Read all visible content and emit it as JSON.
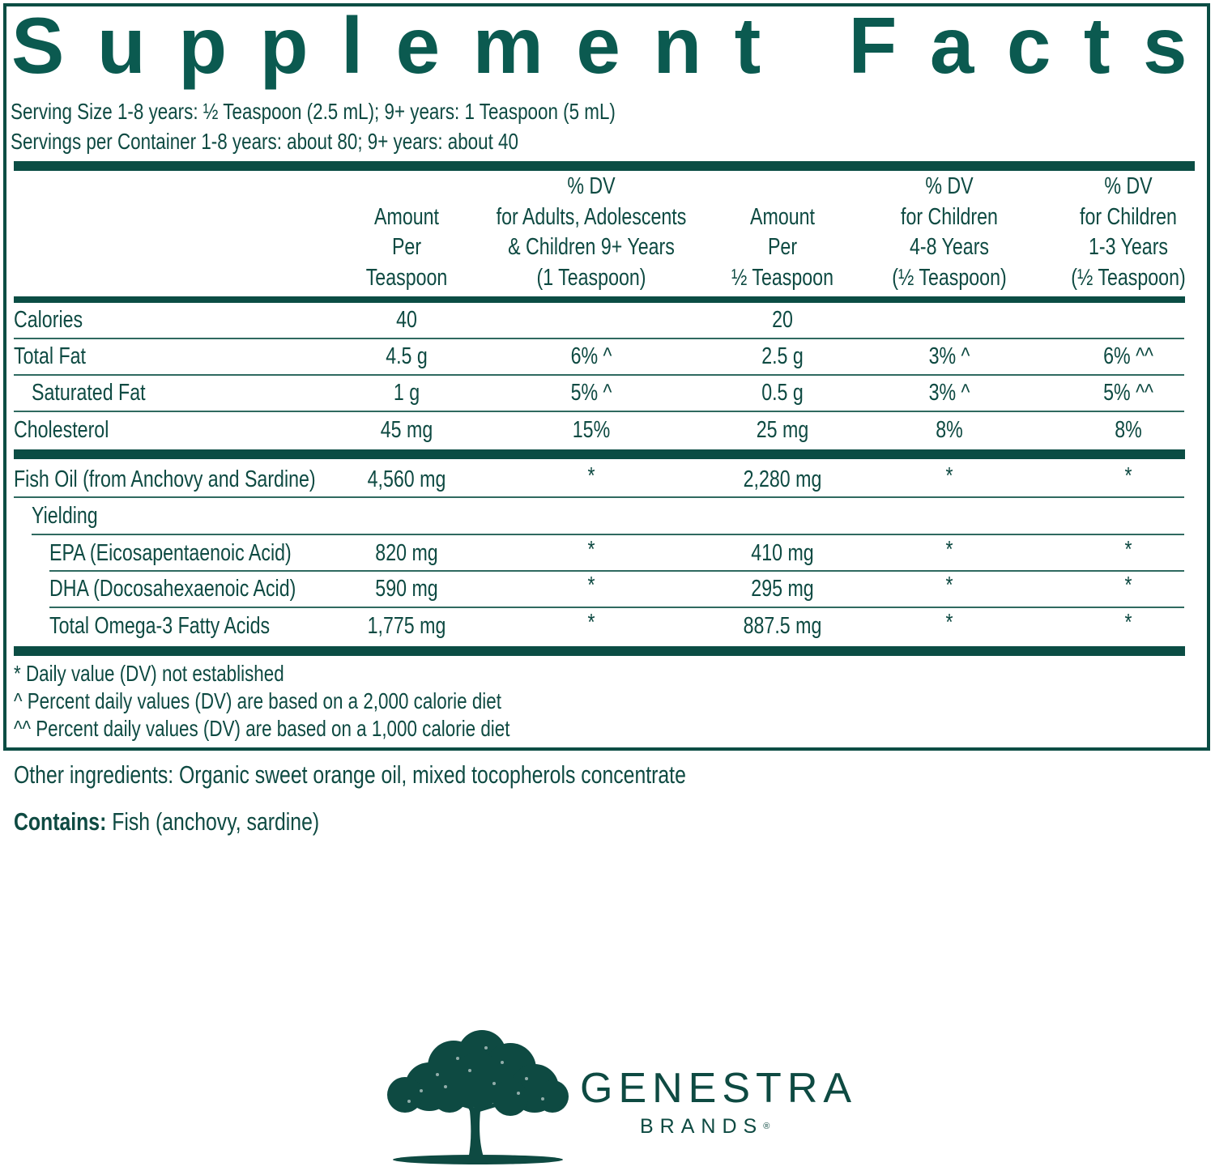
{
  "label": {
    "title": "Supplement Facts",
    "serving_size": "Serving Size 1-8 years: ½ Teaspoon (2.5 mL); 9+ years: 1 Teaspoon (5 mL)",
    "servings_per_container": "Servings per Container 1-8 years: about 80; 9+ years: about 40",
    "colors": {
      "primary": "#0b4d44",
      "text": "#0e4a42"
    },
    "columns": [
      {
        "lines": [
          "Amount",
          "Per",
          "Teaspoon"
        ]
      },
      {
        "lines": [
          "% DV",
          "for Adults, Adolescents",
          "& Children 9+ Years",
          "(1 Teaspoon)"
        ]
      },
      {
        "lines": [
          "Amount",
          "Per",
          "½ Teaspoon"
        ]
      },
      {
        "lines": [
          "% DV",
          "for Children",
          "4-8 Years",
          "(½ Teaspoon)"
        ]
      },
      {
        "lines": [
          "% DV",
          "for Children",
          "1-3 Years",
          "(½ Teaspoon)"
        ]
      }
    ],
    "rows": [
      {
        "name": "Calories",
        "indent": 0,
        "values": [
          "40",
          "",
          "20",
          "",
          ""
        ]
      },
      {
        "name": "Total Fat",
        "indent": 0,
        "values": [
          "4.5 g",
          "6% ^",
          "2.5 g",
          "3% ^",
          "6% ^^"
        ]
      },
      {
        "name": "Saturated Fat",
        "indent": 1,
        "values": [
          "1 g",
          "5% ^",
          "0.5 g",
          "3% ^",
          "5% ^^"
        ]
      },
      {
        "name": "Cholesterol",
        "indent": 0,
        "values": [
          "45 mg",
          "15%",
          "25 mg",
          "8%",
          "8%"
        ]
      },
      {
        "name": "Fish Oil (from Anchovy and Sardine)",
        "indent": 0,
        "values": [
          "4,560 mg",
          "*",
          "2,280 mg",
          "*",
          "*"
        ]
      },
      {
        "name": "Yielding",
        "indent": 1,
        "values": [
          "",
          "",
          "",
          "",
          ""
        ]
      },
      {
        "name": "EPA (Eicosapentaenoic Acid)",
        "indent": 2,
        "values": [
          "820 mg",
          "*",
          "410 mg",
          "*",
          "*"
        ]
      },
      {
        "name": "DHA (Docosahexaenoic Acid)",
        "indent": 2,
        "values": [
          "590 mg",
          "*",
          "295 mg",
          "*",
          "*"
        ]
      },
      {
        "name": "Total Omega-3 Fatty Acids",
        "indent": 2,
        "values": [
          "1,775 mg",
          "*",
          "887.5 mg",
          "*",
          "*"
        ]
      }
    ],
    "footnotes": [
      "* Daily value (DV) not established",
      "^ Percent daily values (DV) are based on a 2,000 calorie diet",
      "^^ Percent daily values (DV) are based on a 1,000 calorie diet"
    ]
  },
  "other_ingredients": "Other ingredients: Organic sweet orange oil, mixed tocopherols concentrate",
  "contains": {
    "label": "Contains:",
    "text": " Fish (anchovy, sardine)"
  },
  "brand": {
    "name": "GENESTRA",
    "sub": "BRANDS",
    "registered": "®",
    "logo_icon": "oak-tree-icon"
  }
}
